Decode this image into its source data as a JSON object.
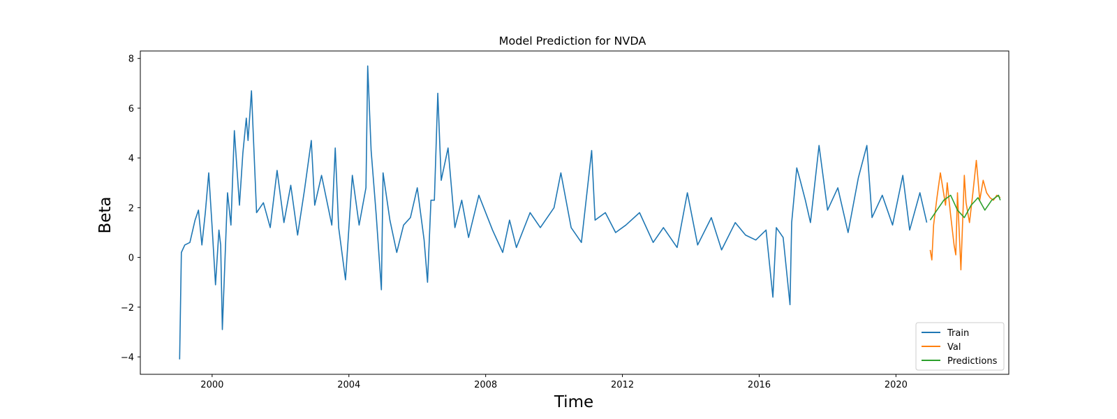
{
  "chart_data": {
    "type": "line",
    "title": "Model Prediction for NVDA",
    "xlabel": "Time",
    "ylabel": "Beta",
    "xlim": [
      1997.9,
      2023.3
    ],
    "ylim": [
      -4.7,
      8.3
    ],
    "x_ticks": [
      2000,
      2004,
      2008,
      2012,
      2016,
      2020
    ],
    "y_ticks": [
      -4,
      -2,
      0,
      2,
      4,
      6,
      8
    ],
    "y_tick_labels": [
      "−4",
      "−2",
      "0",
      "2",
      "4",
      "6",
      "8"
    ],
    "grid": false,
    "legend_position": "lower-right",
    "series": [
      {
        "name": "Train",
        "color": "#1f77b4",
        "x": [
          1999.05,
          1999.1,
          1999.2,
          1999.35,
          1999.5,
          1999.6,
          1999.7,
          1999.8,
          1999.9,
          2000.0,
          2000.1,
          2000.2,
          2000.25,
          2000.3,
          2000.45,
          2000.55,
          2000.65,
          2000.8,
          2000.9,
          2001.0,
          2001.05,
          2001.15,
          2001.3,
          2001.5,
          2001.7,
          2001.9,
          2002.1,
          2002.3,
          2002.5,
          2002.7,
          2002.9,
          2003.0,
          2003.2,
          2003.5,
          2003.6,
          2003.7,
          2003.9,
          2004.1,
          2004.3,
          2004.5,
          2004.55,
          2004.65,
          2004.8,
          2004.95,
          2005.0,
          2005.2,
          2005.4,
          2005.6,
          2005.8,
          2006.0,
          2006.2,
          2006.3,
          2006.4,
          2006.5,
          2006.6,
          2006.7,
          2006.9,
          2007.1,
          2007.3,
          2007.5,
          2007.8,
          2008.2,
          2008.5,
          2008.7,
          2008.9,
          2009.3,
          2009.6,
          2010.0,
          2010.2,
          2010.5,
          2010.8,
          2011.1,
          2011.2,
          2011.5,
          2011.8,
          2012.1,
          2012.5,
          2012.9,
          2013.2,
          2013.6,
          2013.9,
          2014.2,
          2014.6,
          2014.9,
          2015.3,
          2015.6,
          2015.9,
          2016.2,
          2016.4,
          2016.5,
          2016.7,
          2016.9,
          2016.95,
          2017.1,
          2017.2,
          2017.35,
          2017.5,
          2017.75,
          2018.0,
          2018.3,
          2018.6,
          2018.9,
          2019.15,
          2019.3,
          2019.6,
          2019.9,
          2020.2,
          2020.4,
          2020.7,
          2020.9
        ],
        "values": [
          -4.1,
          0.2,
          0.5,
          0.6,
          1.5,
          1.9,
          0.5,
          1.8,
          3.4,
          1.2,
          -1.1,
          1.1,
          0.5,
          -2.9,
          2.6,
          1.3,
          5.1,
          2.1,
          4.2,
          5.6,
          4.7,
          6.7,
          1.8,
          2.2,
          1.2,
          3.5,
          1.4,
          2.9,
          0.9,
          2.7,
          4.7,
          2.1,
          3.3,
          1.3,
          4.4,
          1.2,
          -0.9,
          3.3,
          1.3,
          2.8,
          7.7,
          4.3,
          1.7,
          -1.3,
          3.4,
          1.5,
          0.2,
          1.3,
          1.6,
          2.8,
          0.7,
          -1.0,
          2.3,
          2.3,
          6.6,
          3.1,
          4.4,
          1.2,
          2.3,
          0.8,
          2.5,
          1.1,
          0.2,
          1.5,
          0.4,
          1.8,
          1.2,
          2.0,
          3.4,
          1.2,
          0.6,
          4.3,
          1.5,
          1.8,
          1.0,
          1.3,
          1.8,
          0.6,
          1.2,
          0.4,
          2.6,
          0.5,
          1.6,
          0.3,
          1.4,
          0.9,
          0.7,
          1.1,
          -1.6,
          1.2,
          0.8,
          -1.9,
          1.4,
          3.6,
          3.1,
          2.3,
          1.4,
          4.5,
          1.9,
          2.8,
          1.0,
          3.2,
          4.5,
          1.6,
          2.5,
          1.3,
          3.3,
          1.1,
          2.6,
          1.4
        ]
      },
      {
        "name": "Val",
        "color": "#ff7f0e",
        "x": [
          2021.0,
          2021.05,
          2021.1,
          2021.2,
          2021.3,
          2021.45,
          2021.5,
          2021.6,
          2021.7,
          2021.75,
          2021.8,
          2021.9,
          2022.0,
          2022.05,
          2022.15,
          2022.25,
          2022.35,
          2022.45,
          2022.55,
          2022.65,
          2022.75,
          2022.85,
          2022.95,
          2023.05
        ],
        "values": [
          0.3,
          -0.1,
          1.3,
          2.4,
          3.4,
          2.1,
          3.0,
          1.7,
          0.5,
          0.1,
          2.6,
          -0.5,
          3.3,
          2.2,
          1.4,
          2.6,
          3.9,
          2.3,
          3.1,
          2.6,
          2.4,
          2.3,
          2.5,
          2.4
        ]
      },
      {
        "name": "Predictions",
        "color": "#2ca02c",
        "x": [
          2021.0,
          2021.2,
          2021.4,
          2021.6,
          2021.8,
          2022.0,
          2022.2,
          2022.4,
          2022.6,
          2022.8,
          2023.0,
          2023.05
        ],
        "values": [
          1.5,
          1.9,
          2.3,
          2.5,
          1.9,
          1.6,
          2.1,
          2.4,
          1.9,
          2.3,
          2.5,
          2.3
        ]
      }
    ]
  }
}
